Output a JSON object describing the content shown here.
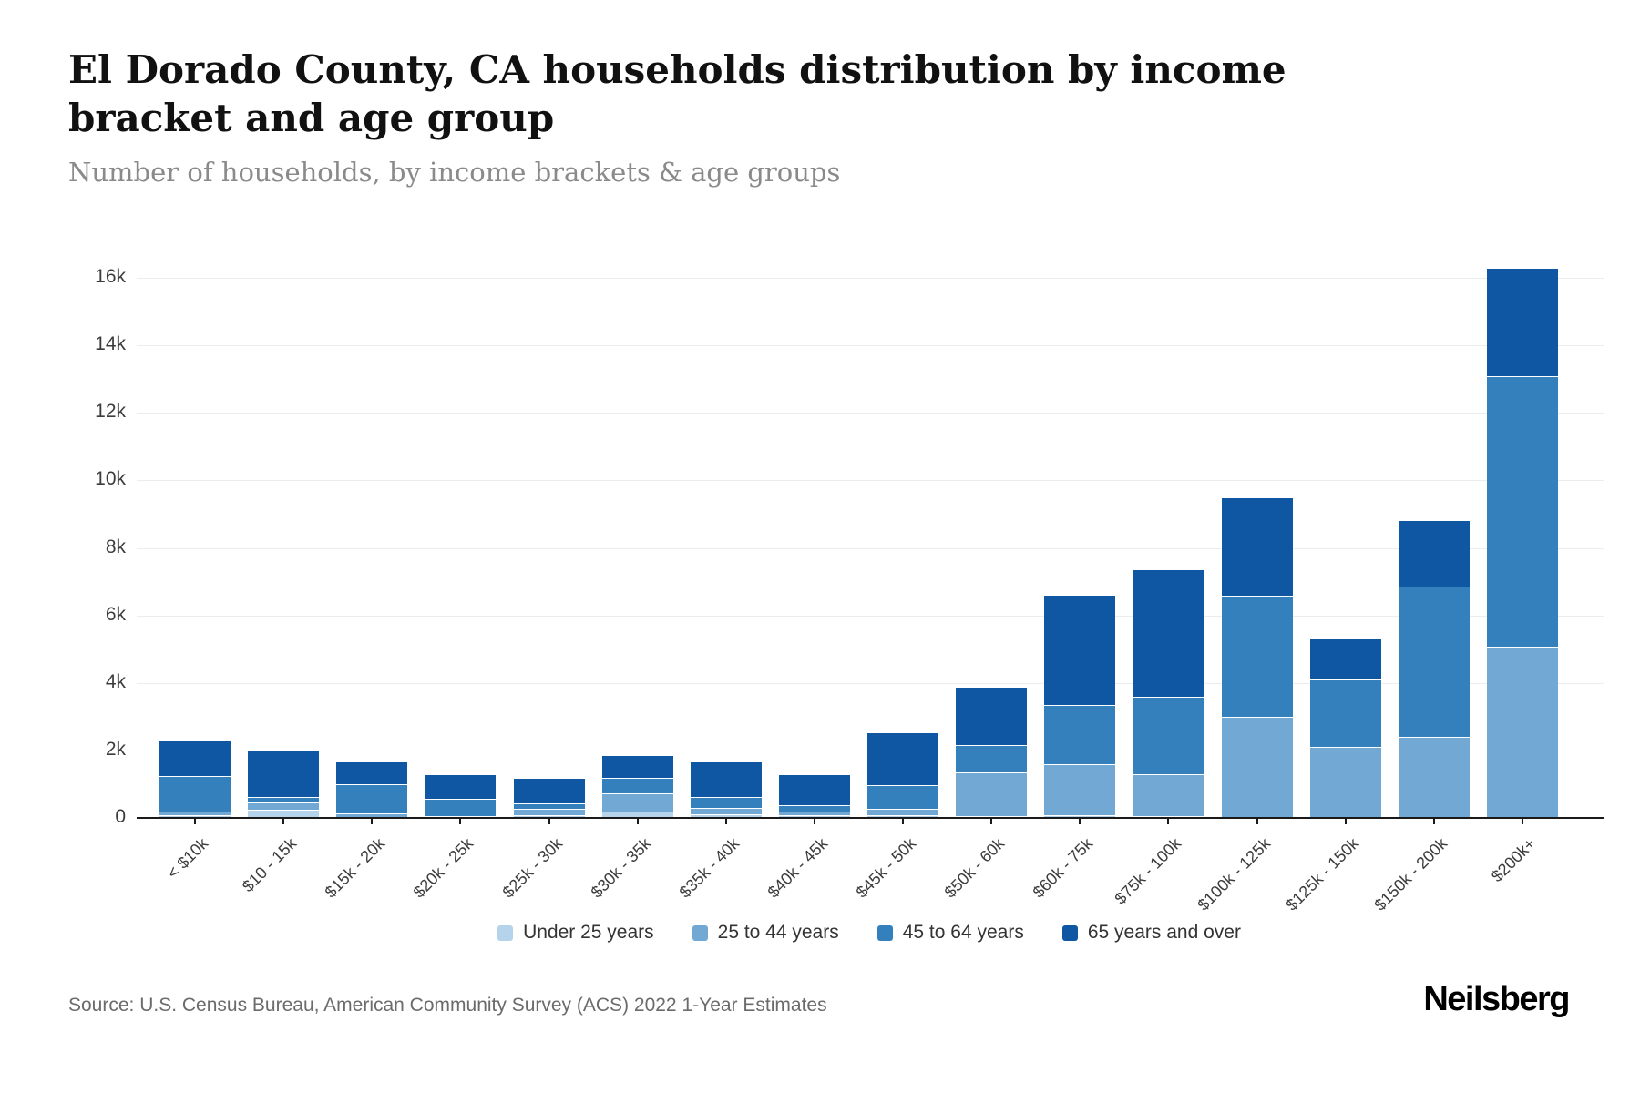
{
  "header": {
    "title": "El Dorado County, CA households distribution by income bracket and age group",
    "subtitle": "Number of households, by income brackets & age groups"
  },
  "footer": {
    "source": "Source: U.S. Census Bureau, American Community Survey (ACS) 2022 1-Year Estimates",
    "brand": "Neilsberg"
  },
  "chart_data": {
    "type": "bar",
    "stacked": true,
    "title": "El Dorado County, CA households distribution by income bracket and age group",
    "subtitle": "Number of households, by income brackets & age groups",
    "xlabel": "",
    "ylabel": "Number of households",
    "ylim": [
      0,
      16000
    ],
    "yticks": [
      "0",
      "2k",
      "4k",
      "6k",
      "8k",
      "10k",
      "12k",
      "14k",
      "16k"
    ],
    "ytick_values": [
      0,
      2000,
      4000,
      6000,
      8000,
      10000,
      12000,
      14000,
      16000
    ],
    "grid": true,
    "legend_position": "bottom",
    "categories": [
      "< $10k",
      "$10 - 15k",
      "$15k - 20k",
      "$20k - 25k",
      "$25k - 30k",
      "$30k - 35k",
      "$35k - 40k",
      "$40k - 45k",
      "$45k - 50k",
      "$50k - 60k",
      "$60k - 75k",
      "$75k - 100k",
      "$100k - 125k",
      "$125k - 150k",
      "$150k - 200k",
      "$200k+"
    ],
    "series": [
      {
        "name": "Under 25 years",
        "color": "#b5d3ea",
        "values": [
          80,
          230,
          30,
          0,
          80,
          190,
          100,
          90,
          80,
          60,
          80,
          50,
          0,
          0,
          0,
          0
        ]
      },
      {
        "name": "25 to 44 years",
        "color": "#71a9d4",
        "values": [
          120,
          230,
          100,
          60,
          190,
          540,
          190,
          110,
          200,
          1300,
          1500,
          1250,
          3000,
          2110,
          2400,
          5080
        ]
      },
      {
        "name": "45 to 64 years",
        "color": "#3380bd",
        "values": [
          1030,
          150,
          870,
          520,
          160,
          460,
          320,
          190,
          680,
          810,
          1760,
          2300,
          3580,
          2000,
          4450,
          8000
        ]
      },
      {
        "name": "65 years and over",
        "color": "#1057a3",
        "values": [
          1030,
          1380,
          650,
          680,
          730,
          650,
          1030,
          870,
          1550,
          1700,
          3250,
          3750,
          2900,
          1190,
          1950,
          3190
        ]
      }
    ],
    "totals": [
      2260,
      1990,
      1650,
      1260,
      1160,
      1840,
      1640,
      1260,
      2510,
      3870,
      6590,
      7350,
      9480,
      5300,
      8800,
      16270
    ]
  }
}
